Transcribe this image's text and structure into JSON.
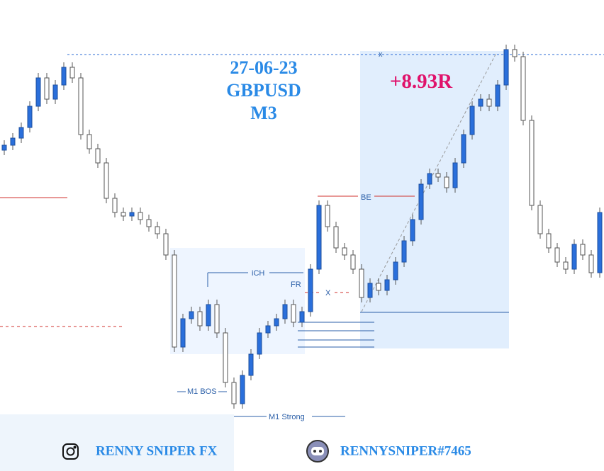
{
  "header": {
    "date": "27-06-23",
    "pair": "GBPUSD",
    "timeframe": "M3"
  },
  "result": "+8.93R",
  "annotations": {
    "target_marker": "x",
    "breakeven": "BE",
    "ich": "iCH",
    "fr": "FR",
    "entry_marker": "X",
    "m1_bos": "M1 BOS",
    "m1_strong": "M1 Strong"
  },
  "footer": {
    "instagram": "RENNY SNIPER FX",
    "discord": "RENNYSNIPER#7465"
  }
}
